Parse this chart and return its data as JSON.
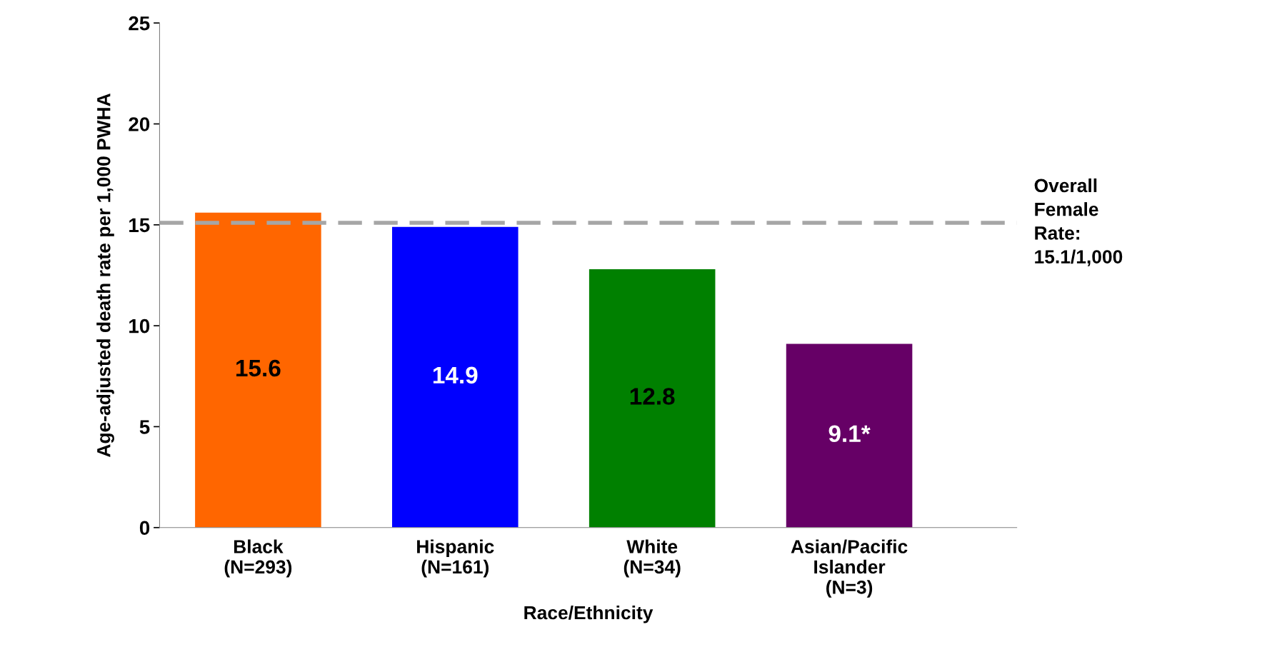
{
  "chart_data": {
    "type": "bar",
    "categories": [
      "Black\n(N=293)",
      "Hispanic\n(N=161)",
      "White\n(N=34)",
      "Asian/Pacific\nIslander\n(N=3)"
    ],
    "values": [
      15.6,
      14.9,
      12.8,
      9.1
    ],
    "colors": [
      "#ff6600",
      "#0000ff",
      "#008000",
      "#660066"
    ],
    "value_labels": [
      "15.6",
      "14.9",
      "12.8",
      "9.1*"
    ],
    "xlabel": "Race/Ethnicity",
    "ylabel": "Age-adjusted death rate per 1,000 PWHA",
    "ylim": [
      0,
      25
    ],
    "yticks": [
      0,
      5,
      10,
      15,
      20,
      25
    ],
    "ref_lines": [
      {
        "axis": "y",
        "value": 15.1,
        "label": "Overall\nFemale\nRate:\n15.1/1,000",
        "color": "#a6a6a6",
        "line_style": "dashed"
      }
    ],
    "grid": false,
    "legend": false
  }
}
